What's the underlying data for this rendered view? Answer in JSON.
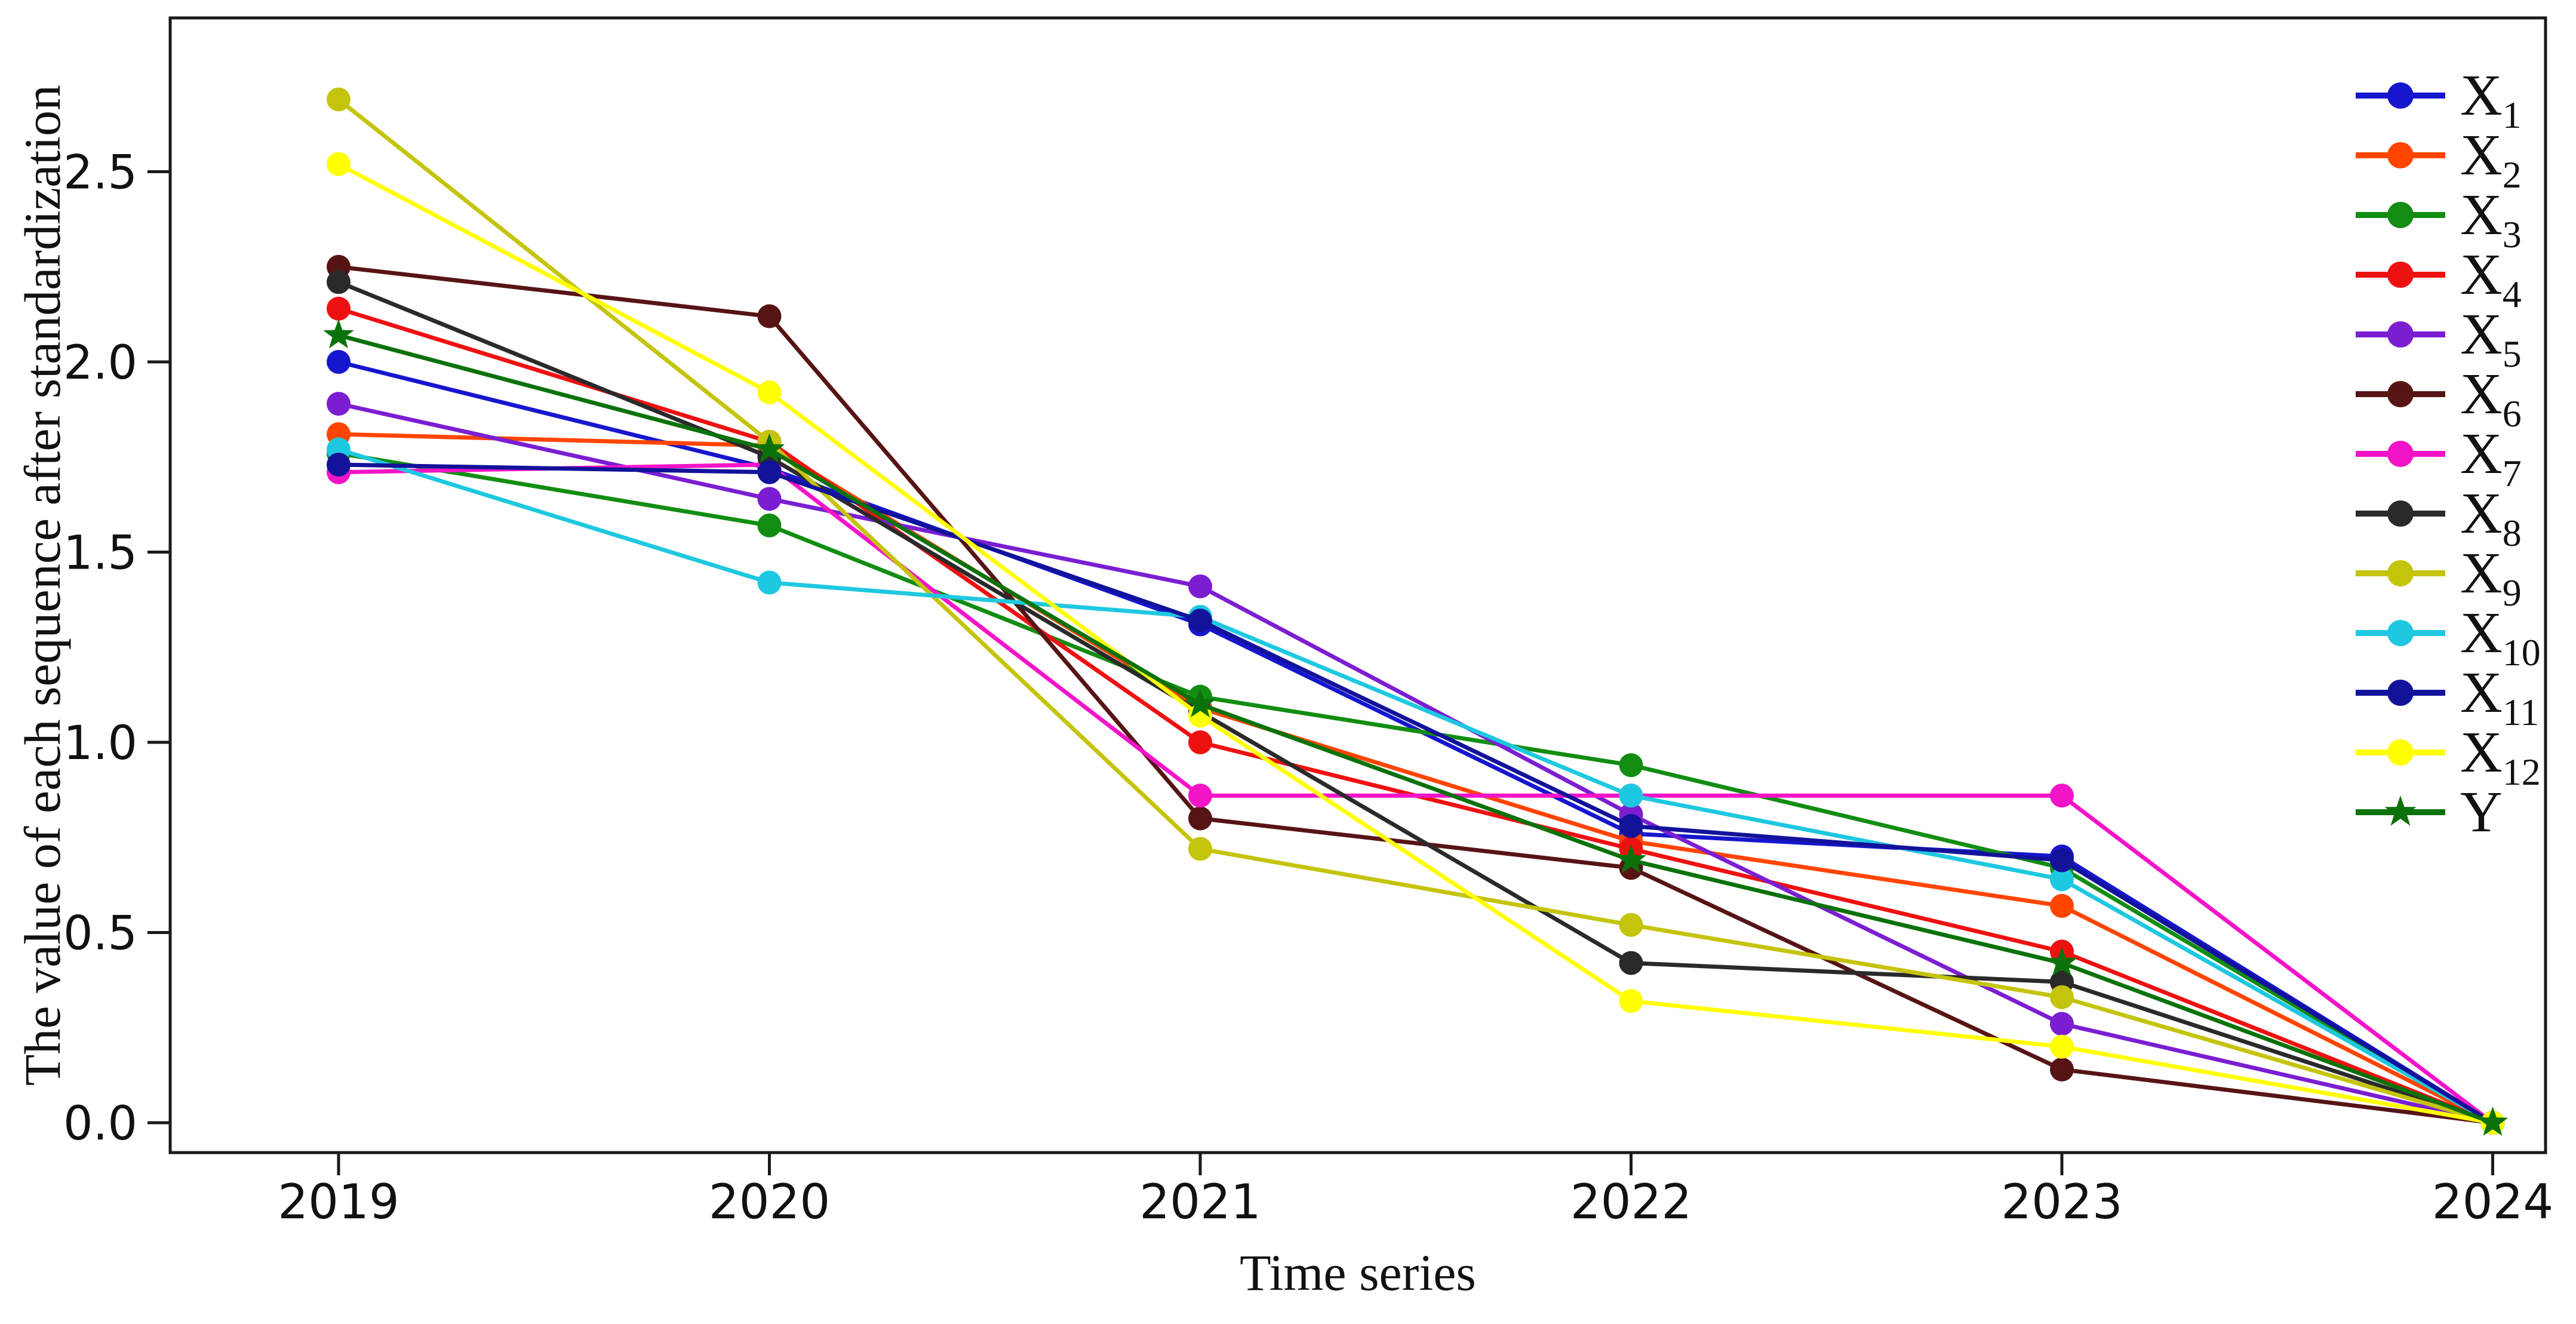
{
  "figure": {
    "x_axis_label": "Time series",
    "y_axis_label": "The value of each sequence after standardization",
    "background_color": "#ffffff",
    "frame_color": "#1a1a1a"
  },
  "chart_data": {
    "type": "line",
    "title": "",
    "xlabel": "Time series",
    "ylabel": "The value of each sequence after standardization",
    "x": [
      2019,
      2020,
      2021,
      2022,
      2023,
      2024
    ],
    "x_tick_labels": [
      "2019",
      "2020",
      "2021",
      "2022",
      "2023",
      "2024"
    ],
    "y_tick_labels": [
      "0.0",
      "0.5",
      "1.0",
      "1.5",
      "2.0",
      "2.5"
    ],
    "y_ticks": [
      0.0,
      0.5,
      1.0,
      1.5,
      2.0,
      2.5
    ],
    "ylim": [
      -0.08,
      2.9
    ],
    "grid": false,
    "legend_position": "upper right",
    "legend_frame": false,
    "series": [
      {
        "id": "X1",
        "name": "X",
        "sub": "1",
        "color": "#1616CE",
        "marker": "circle",
        "values": [
          2.0,
          1.72,
          1.31,
          0.76,
          0.7,
          0.0
        ]
      },
      {
        "id": "X2",
        "name": "X",
        "sub": "2",
        "color": "#FF4500",
        "marker": "circle",
        "values": [
          1.81,
          1.78,
          1.09,
          0.74,
          0.57,
          0.0
        ]
      },
      {
        "id": "X3",
        "name": "X",
        "sub": "3",
        "color": "#128D12",
        "marker": "circle",
        "values": [
          1.76,
          1.57,
          1.12,
          0.94,
          0.67,
          0.0
        ]
      },
      {
        "id": "X4",
        "name": "X",
        "sub": "4",
        "color": "#EE1111",
        "marker": "circle",
        "values": [
          2.14,
          1.79,
          1.0,
          0.72,
          0.45,
          0.0
        ]
      },
      {
        "id": "X5",
        "name": "X",
        "sub": "5",
        "color": "#7B1ED2",
        "marker": "circle",
        "values": [
          1.89,
          1.64,
          1.41,
          0.81,
          0.26,
          0.0
        ]
      },
      {
        "id": "X6",
        "name": "X",
        "sub": "6",
        "color": "#571414",
        "marker": "circle",
        "values": [
          2.25,
          2.12,
          0.8,
          0.67,
          0.14,
          0.0
        ]
      },
      {
        "id": "X7",
        "name": "X",
        "sub": "7",
        "color": "#F414C8",
        "marker": "circle",
        "values": [
          1.71,
          1.73,
          0.86,
          0.86,
          0.86,
          0.0
        ]
      },
      {
        "id": "X8",
        "name": "X",
        "sub": "8",
        "color": "#2A2A2A",
        "marker": "circle",
        "values": [
          2.21,
          1.75,
          1.08,
          0.42,
          0.37,
          0.0
        ]
      },
      {
        "id": "X9",
        "name": "X",
        "sub": "9",
        "color": "#C4C40C",
        "marker": "circle",
        "values": [
          2.69,
          1.79,
          0.72,
          0.52,
          0.33,
          0.0
        ]
      },
      {
        "id": "X10",
        "name": "X",
        "sub": "10",
        "color": "#1EC8E0",
        "marker": "circle",
        "values": [
          1.77,
          1.42,
          1.33,
          0.86,
          0.64,
          0.0
        ]
      },
      {
        "id": "X11",
        "name": "X",
        "sub": "11",
        "color": "#12129B",
        "marker": "circle",
        "values": [
          1.73,
          1.71,
          1.32,
          0.78,
          0.69,
          0.0
        ]
      },
      {
        "id": "X12",
        "name": "X",
        "sub": "12",
        "color": "#FFFF00",
        "marker": "circle",
        "values": [
          2.52,
          1.92,
          1.07,
          0.32,
          0.2,
          0.0
        ]
      },
      {
        "id": "Y",
        "name": "Y",
        "sub": "",
        "color": "#0B720B",
        "marker": "star",
        "values": [
          2.07,
          1.77,
          1.1,
          0.69,
          0.42,
          0.0
        ]
      }
    ]
  }
}
